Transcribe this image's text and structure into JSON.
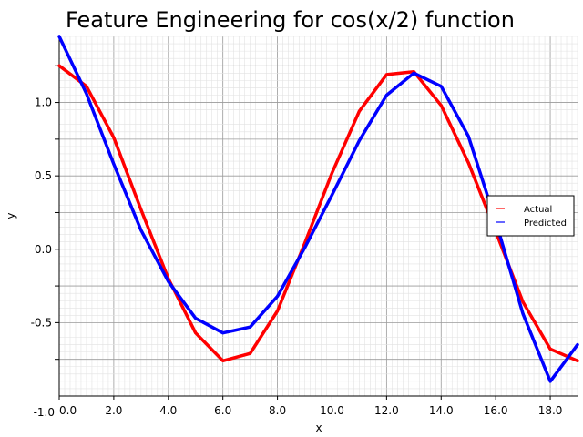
{
  "chart_data": {
    "type": "line",
    "title": "Feature Engineering for cos(x/2) function",
    "xlabel": "x",
    "ylabel": "y",
    "xlim": [
      0,
      19
    ],
    "ylim": [
      -1.0,
      1.45
    ],
    "x_ticks": [
      0,
      2,
      4,
      6,
      8,
      10,
      12,
      14,
      16,
      18
    ],
    "x_tick_labels": [
      "0.0",
      "2.0",
      "4.0",
      "6.0",
      "8.0",
      "10.0",
      "12.0",
      "14.0",
      "16.0",
      "18.0"
    ],
    "y_ticks": [
      -1.0,
      -0.5,
      0.0,
      0.5,
      1.0
    ],
    "y_tick_labels": [
      "-1.0",
      "-0.5",
      "0.0",
      "0.5",
      "1.0"
    ],
    "grid": true,
    "legend_position": "right",
    "x": [
      0,
      1,
      2,
      3,
      4,
      5,
      6,
      7,
      8,
      9,
      10,
      11,
      12,
      13,
      14,
      15,
      16,
      17,
      18,
      19
    ],
    "series": [
      {
        "name": "Actual",
        "color": "#ff0000",
        "values": [
          1.25,
          1.11,
          0.76,
          0.27,
          -0.2,
          -0.57,
          -0.76,
          -0.71,
          -0.42,
          0.04,
          0.52,
          0.94,
          1.19,
          1.21,
          0.98,
          0.59,
          0.12,
          -0.36,
          -0.68,
          -0.76
        ]
      },
      {
        "name": "Predicted",
        "color": "#0000ff",
        "values": [
          1.45,
          1.06,
          0.58,
          0.13,
          -0.22,
          -0.47,
          -0.57,
          -0.53,
          -0.32,
          0.01,
          0.37,
          0.74,
          1.05,
          1.2,
          1.11,
          0.77,
          0.19,
          -0.44,
          -0.9,
          -0.65
        ]
      }
    ]
  }
}
